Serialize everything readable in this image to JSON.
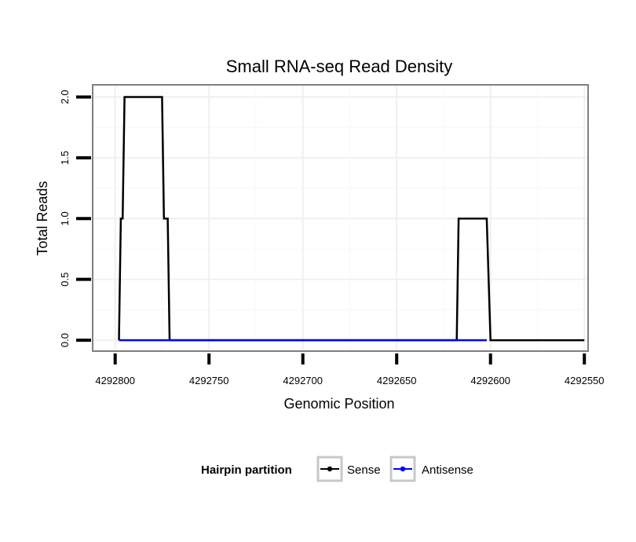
{
  "chart_data": {
    "type": "line",
    "title": "Small RNA-seq Read Density",
    "xlabel": "Genomic Position",
    "ylabel": "Total Reads",
    "xlim": [
      4292812,
      4292548
    ],
    "ylim": [
      -0.09,
      2.1
    ],
    "x_ticks": [
      4292800,
      4292750,
      4292700,
      4292650,
      4292600,
      4292550
    ],
    "x_tick_labels": [
      "4292800",
      "4292750",
      "4292700",
      "4292650",
      "4292600",
      "4292550"
    ],
    "y_ticks": [
      0,
      0.5,
      1,
      1.5,
      2
    ],
    "y_tick_labels": [
      "0.0",
      "0.5",
      "1.0",
      "1.5",
      "2.0"
    ],
    "grid": true,
    "legend_position": "bottom",
    "legend_title": "Hairpin partition",
    "series": [
      {
        "name": "Sense",
        "color": "#000000",
        "x": [
          4292798,
          4292797,
          4292796,
          4292795,
          4292791,
          4292775,
          4292774,
          4292773,
          4292772,
          4292771,
          4292770,
          4292620,
          4292618,
          4292617,
          4292603,
          4292602,
          4292600,
          4292550
        ],
        "y": [
          0,
          1,
          1,
          2,
          2,
          2,
          1,
          1,
          1,
          0,
          0,
          0,
          0,
          1,
          1,
          1,
          0,
          0
        ]
      },
      {
        "name": "Antisense",
        "color": "#0000ff",
        "x": [
          4292798,
          4292770,
          4292618,
          4292602
        ],
        "y": [
          0,
          0,
          0,
          0
        ]
      }
    ]
  }
}
